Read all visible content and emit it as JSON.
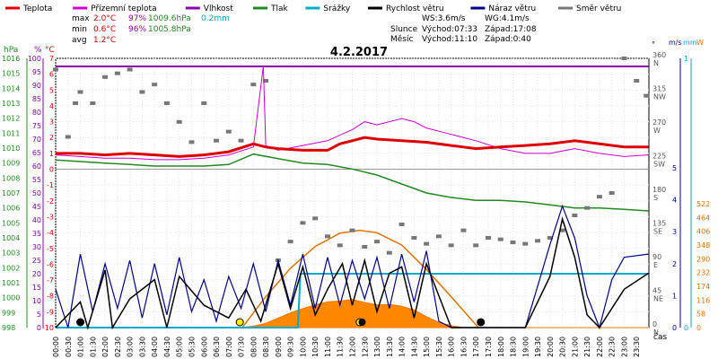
{
  "chart_data": {
    "type": "line",
    "title": "4.2.2017",
    "legend": [
      {
        "label": "Teplota",
        "color": "#dd0000"
      },
      {
        "label": "Přízemní teplota",
        "color": "#cc00cc"
      },
      {
        "label": "Vlhkost",
        "color": "#8800aa"
      },
      {
        "label": "Tlak",
        "color": "#228822"
      },
      {
        "label": "Srážky",
        "color": "#00aacc"
      },
      {
        "label": "Rychlost větru",
        "color": "#000000"
      },
      {
        "label": "Náraz větru",
        "color": "#000088"
      },
      {
        "label": "Směr větru",
        "color": "#777777"
      }
    ],
    "stats": {
      "max": {
        "label": "max",
        "temp": "2.0°C",
        "hum": "97%",
        "press": "1009.6hPa",
        "rain": "0.2mm"
      },
      "min": {
        "label": "min",
        "temp": "0.6°C",
        "hum": "96%",
        "press": "1005.8hPa"
      },
      "avg": {
        "label": "avg",
        "temp": "1.2°C"
      }
    },
    "wind_info": {
      "ws": "WS:3.6m/s",
      "wg": "WG:4.1m/s"
    },
    "sun_info": {
      "label": "Slunce",
      "rise": "Východ:07:33",
      "set": "Západ:17:08"
    },
    "moon_info": {
      "label": "Měsíc",
      "rise": "Východ:11:10",
      "set": "Západ:0:40"
    },
    "axes": {
      "hpa": {
        "unit": "hPa",
        "ticks": [
          998,
          999,
          1000,
          1001,
          1002,
          1003,
          1004,
          1005,
          1006,
          1007,
          1008,
          1009,
          1010,
          1011,
          1012,
          1013,
          1014,
          1015,
          1016
        ]
      },
      "humidity": {
        "unit": "%",
        "ticks": [
          0,
          5,
          10,
          15,
          20,
          25,
          30,
          35,
          40,
          45,
          50,
          55,
          60,
          65,
          70,
          75,
          80,
          85,
          90,
          95,
          100
        ]
      },
      "temp": {
        "unit": "°C",
        "ticks": [
          -10,
          -9,
          -8,
          -7,
          -6,
          -5,
          -4,
          -3,
          -2,
          -1,
          0,
          1,
          2,
          3,
          4,
          5,
          6,
          7
        ]
      },
      "direction": {
        "unit": "°",
        "ticks": [
          0,
          45,
          90,
          135,
          180,
          225,
          270,
          315,
          360
        ],
        "compass": [
          "N",
          "NE",
          "E",
          "SE",
          "S",
          "SW",
          "W",
          "NW",
          "N"
        ]
      },
      "wind": {
        "unit": "m/s",
        "ticks": [
          0,
          1,
          2,
          3,
          4,
          5
        ]
      },
      "rain": {
        "unit": "mm",
        "ticks": [
          0,
          1
        ]
      },
      "solar": {
        "unit": "W",
        "ticks": [
          0,
          58,
          116,
          174,
          232,
          290,
          348,
          406,
          464,
          522
        ]
      },
      "time": {
        "label": "čas",
        "ticks": [
          "00:00",
          "00:30",
          "01:00",
          "01:30",
          "02:00",
          "02:30",
          "03:00",
          "03:30",
          "04:00",
          "04:30",
          "05:00",
          "05:30",
          "06:00",
          "06:30",
          "07:00",
          "07:30",
          "08:00",
          "08:30",
          "09:00",
          "09:30",
          "10:00",
          "10:30",
          "11:00",
          "11:30",
          "12:00",
          "12:30",
          "13:00",
          "13:30",
          "14:00",
          "14:30",
          "15:00",
          "15:30",
          "16:00",
          "16:30",
          "17:00",
          "17:30",
          "18:00",
          "18:30",
          "19:00",
          "19:30",
          "20:00",
          "20:30",
          "21:00",
          "21:30",
          "22:00",
          "22:30",
          "23:00",
          "23:30"
        ]
      }
    },
    "series": {
      "temperature": [
        [
          0,
          1.0
        ],
        [
          1,
          1.0
        ],
        [
          2,
          0.9
        ],
        [
          3,
          1.0
        ],
        [
          4,
          0.9
        ],
        [
          5,
          0.8
        ],
        [
          6,
          0.9
        ],
        [
          7,
          1.1
        ],
        [
          8,
          1.6
        ],
        [
          8.5,
          1.4
        ],
        [
          9,
          1.3
        ],
        [
          10,
          1.2
        ],
        [
          11,
          1.2
        ],
        [
          11.5,
          1.6
        ],
        [
          12,
          1.8
        ],
        [
          12.5,
          2.0
        ],
        [
          13,
          1.9
        ],
        [
          14,
          1.8
        ],
        [
          15,
          1.7
        ],
        [
          16,
          1.5
        ],
        [
          17,
          1.3
        ],
        [
          18,
          1.4
        ],
        [
          19,
          1.5
        ],
        [
          20,
          1.6
        ],
        [
          21,
          1.8
        ],
        [
          22,
          1.6
        ],
        [
          23,
          1.4
        ],
        [
          23.98,
          1.4
        ]
      ],
      "ground_temp": [
        [
          0,
          0.9
        ],
        [
          1,
          0.8
        ],
        [
          2,
          0.7
        ],
        [
          3,
          0.7
        ],
        [
          4,
          0.6
        ],
        [
          5,
          0.6
        ],
        [
          6,
          0.7
        ],
        [
          7,
          0.9
        ],
        [
          8,
          1.4
        ],
        [
          8.4,
          6.5
        ],
        [
          8.5,
          1.5
        ],
        [
          9,
          1.2
        ],
        [
          10,
          1.5
        ],
        [
          11,
          1.8
        ],
        [
          12,
          2.5
        ],
        [
          12.5,
          3.0
        ],
        [
          13,
          2.8
        ],
        [
          14,
          3.2
        ],
        [
          14.5,
          3.0
        ],
        [
          15,
          2.6
        ],
        [
          16,
          2.2
        ],
        [
          17,
          1.8
        ],
        [
          18,
          1.3
        ],
        [
          19,
          1.0
        ],
        [
          20,
          1.0
        ],
        [
          21,
          1.3
        ],
        [
          22,
          1.0
        ],
        [
          23,
          0.8
        ],
        [
          23.98,
          0.9
        ]
      ],
      "humidity": [
        97,
        97
      ],
      "pressure": [
        [
          0,
          1009.2
        ],
        [
          1,
          1009.1
        ],
        [
          2,
          1009.0
        ],
        [
          3,
          1008.9
        ],
        [
          4,
          1008.8
        ],
        [
          5,
          1008.8
        ],
        [
          6,
          1008.8
        ],
        [
          7,
          1008.9
        ],
        [
          8,
          1009.6
        ],
        [
          9,
          1009.3
        ],
        [
          10,
          1009.0
        ],
        [
          11,
          1008.9
        ],
        [
          12,
          1008.6
        ],
        [
          13,
          1008.2
        ],
        [
          14,
          1007.6
        ],
        [
          15,
          1007.0
        ],
        [
          16,
          1006.7
        ],
        [
          17,
          1006.5
        ],
        [
          18,
          1006.5
        ],
        [
          19,
          1006.4
        ],
        [
          20,
          1006.2
        ],
        [
          21,
          1006.0
        ],
        [
          22,
          1006.0
        ],
        [
          23,
          1005.9
        ],
        [
          23.98,
          1005.8
        ]
      ],
      "rain_total": [
        [
          0,
          0
        ],
        [
          9.8,
          0
        ],
        [
          9.9,
          0.2
        ],
        [
          23.98,
          0.2
        ]
      ],
      "wind_speed": [
        [
          0,
          0
        ],
        [
          1,
          0.8
        ],
        [
          1.3,
          0
        ],
        [
          2,
          1.8
        ],
        [
          2.3,
          0
        ],
        [
          3,
          0.9
        ],
        [
          4,
          1.5
        ],
        [
          4.5,
          0
        ],
        [
          5,
          1.6
        ],
        [
          6,
          0.7
        ],
        [
          7,
          0.3
        ],
        [
          7.7,
          1.2
        ],
        [
          8.3,
          0.2
        ],
        [
          9,
          2.0
        ],
        [
          9.5,
          0.6
        ],
        [
          10,
          1.9
        ],
        [
          10.5,
          0.4
        ],
        [
          11,
          1.2
        ],
        [
          11.6,
          2.0
        ],
        [
          12,
          0.7
        ],
        [
          12.5,
          2.1
        ],
        [
          13,
          0.5
        ],
        [
          13.5,
          1.7
        ],
        [
          14,
          1.9
        ],
        [
          14.5,
          0.3
        ],
        [
          15,
          2.0
        ],
        [
          15.5,
          1.0
        ],
        [
          16,
          0
        ],
        [
          18,
          0
        ],
        [
          19,
          0
        ],
        [
          20,
          1.6
        ],
        [
          20.5,
          3.4
        ],
        [
          21,
          2.2
        ],
        [
          21.5,
          0.4
        ],
        [
          22,
          0
        ],
        [
          23,
          1.2
        ],
        [
          23.98,
          1.7
        ]
      ],
      "wind_gust": [
        [
          0,
          1.2
        ],
        [
          0.5,
          0
        ],
        [
          1,
          2.3
        ],
        [
          1.5,
          0.5
        ],
        [
          2,
          2.0
        ],
        [
          2.5,
          0.6
        ],
        [
          3,
          2.1
        ],
        [
          3.5,
          0.3
        ],
        [
          4,
          2.0
        ],
        [
          4.5,
          0.4
        ],
        [
          5,
          2.2
        ],
        [
          5.5,
          0.5
        ],
        [
          6,
          1.5
        ],
        [
          6.5,
          0.2
        ],
        [
          7,
          1.6
        ],
        [
          7.5,
          0.6
        ],
        [
          8,
          2.0
        ],
        [
          8.5,
          0.5
        ],
        [
          9,
          2.1
        ],
        [
          9.5,
          0.7
        ],
        [
          10,
          2.3
        ],
        [
          10.5,
          0.6
        ],
        [
          11,
          2.2
        ],
        [
          11.5,
          0.7
        ],
        [
          12,
          2.1
        ],
        [
          12.5,
          0.9
        ],
        [
          13,
          2.2
        ],
        [
          13.5,
          0.6
        ],
        [
          14,
          2.3
        ],
        [
          14.5,
          0.8
        ],
        [
          15,
          2.4
        ],
        [
          15.5,
          0.2
        ],
        [
          16,
          0
        ],
        [
          18,
          0
        ],
        [
          19,
          0
        ],
        [
          19.5,
          1.3
        ],
        [
          20,
          2.6
        ],
        [
          20.5,
          3.8
        ],
        [
          21,
          2.8
        ],
        [
          21.5,
          1.0
        ],
        [
          22,
          0
        ],
        [
          22.5,
          1.5
        ],
        [
          23,
          2.2
        ],
        [
          23.98,
          2.3
        ]
      ],
      "solar": [
        [
          0,
          0
        ],
        [
          7.5,
          0
        ],
        [
          8,
          6
        ],
        [
          8.5,
          18
        ],
        [
          9,
          40
        ],
        [
          9.5,
          62
        ],
        [
          10,
          80
        ],
        [
          10.5,
          96
        ],
        [
          11,
          108
        ],
        [
          11.5,
          112
        ],
        [
          12,
          118
        ],
        [
          12.5,
          106
        ],
        [
          13,
          96
        ],
        [
          13.5,
          98
        ],
        [
          14,
          90
        ],
        [
          14.5,
          74
        ],
        [
          15,
          46
        ],
        [
          15.5,
          22
        ],
        [
          16,
          8
        ],
        [
          16.5,
          0
        ],
        [
          23.98,
          0
        ]
      ],
      "solar_max": [
        [
          7.55,
          0
        ],
        [
          8.5,
          130
        ],
        [
          9.5,
          250
        ],
        [
          10.5,
          342
        ],
        [
          11.5,
          398
        ],
        [
          12.3,
          410
        ],
        [
          13,
          400
        ],
        [
          14,
          348
        ],
        [
          15,
          245
        ],
        [
          16,
          130
        ],
        [
          17.1,
          0
        ]
      ],
      "wind_dir_deg": [
        [
          0,
          345
        ],
        [
          0.5,
          255
        ],
        [
          0.8,
          300
        ],
        [
          1,
          315
        ],
        [
          1.5,
          300
        ],
        [
          2,
          335
        ],
        [
          2.5,
          340
        ],
        [
          3,
          345
        ],
        [
          3.5,
          315
        ],
        [
          4,
          325
        ],
        [
          4.5,
          300
        ],
        [
          5,
          275
        ],
        [
          5.5,
          248
        ],
        [
          6,
          300
        ],
        [
          6.5,
          250
        ],
        [
          7,
          262
        ],
        [
          7.5,
          250
        ],
        [
          8,
          325
        ],
        [
          8.5,
          330
        ],
        [
          9,
          90
        ],
        [
          9.5,
          115
        ],
        [
          10,
          140
        ],
        [
          10.5,
          146
        ],
        [
          11,
          122
        ],
        [
          11.5,
          110
        ],
        [
          12,
          130
        ],
        [
          12.5,
          108
        ],
        [
          13,
          115
        ],
        [
          13.5,
          100
        ],
        [
          14,
          138
        ],
        [
          14.5,
          120
        ],
        [
          15,
          112
        ],
        [
          15.5,
          122
        ],
        [
          16,
          110
        ],
        [
          16.5,
          130
        ],
        [
          17,
          110
        ],
        [
          17.5,
          120
        ],
        [
          18,
          118
        ],
        [
          18.5,
          114
        ],
        [
          19,
          112
        ],
        [
          19.5,
          116
        ],
        [
          20,
          120
        ],
        [
          20.5,
          130
        ],
        [
          21,
          150
        ],
        [
          21.5,
          160
        ],
        [
          22,
          175
        ],
        [
          22.5,
          180
        ],
        [
          23,
          360
        ],
        [
          23.5,
          330
        ],
        [
          23.9,
          310
        ]
      ],
      "wind_zero_markers": [
        1.0,
        7.45,
        12.3,
        17.2
      ],
      "moon_marker": 12.4
    }
  }
}
